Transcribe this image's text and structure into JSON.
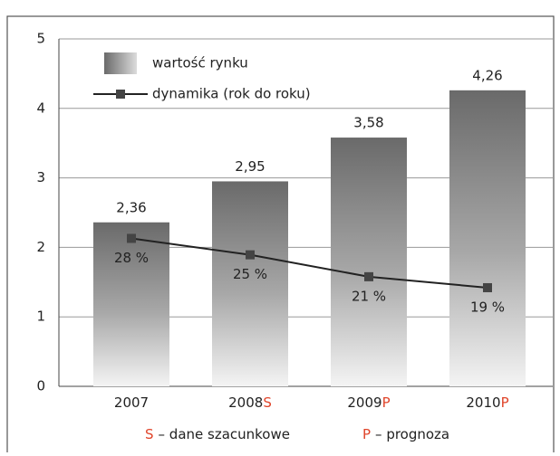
{
  "chart_data": {
    "type": "bar",
    "categories": [
      "2007",
      "2008",
      "2009",
      "2010"
    ],
    "category_suffixes": [
      null,
      "S",
      "P",
      "P"
    ],
    "series": [
      {
        "name": "wartość rynku",
        "type": "bar",
        "color": "#6e6e6e",
        "values": [
          2.36,
          2.95,
          3.58,
          4.26
        ],
        "value_labels": [
          "2,36",
          "2,95",
          "3,58",
          "4,26"
        ]
      },
      {
        "name": "dynamika (rok do roku)",
        "type": "line",
        "axis": "y2",
        "color": "#222222",
        "values": [
          28,
          25,
          21,
          19
        ],
        "value_labels": [
          "28 %",
          "25 %",
          "21 %",
          "19 %"
        ]
      }
    ],
    "ylim": [
      0,
      5
    ],
    "yticks": [
      0,
      1,
      2,
      3,
      4,
      5
    ],
    "y2lim": [
      1,
      64.4
    ],
    "grid": true,
    "notes": [
      {
        "key": "S",
        "text": "– dane szacunkowe"
      },
      {
        "key": "P",
        "text": "– prognoza"
      }
    ],
    "accent_color": "#e0442a"
  }
}
